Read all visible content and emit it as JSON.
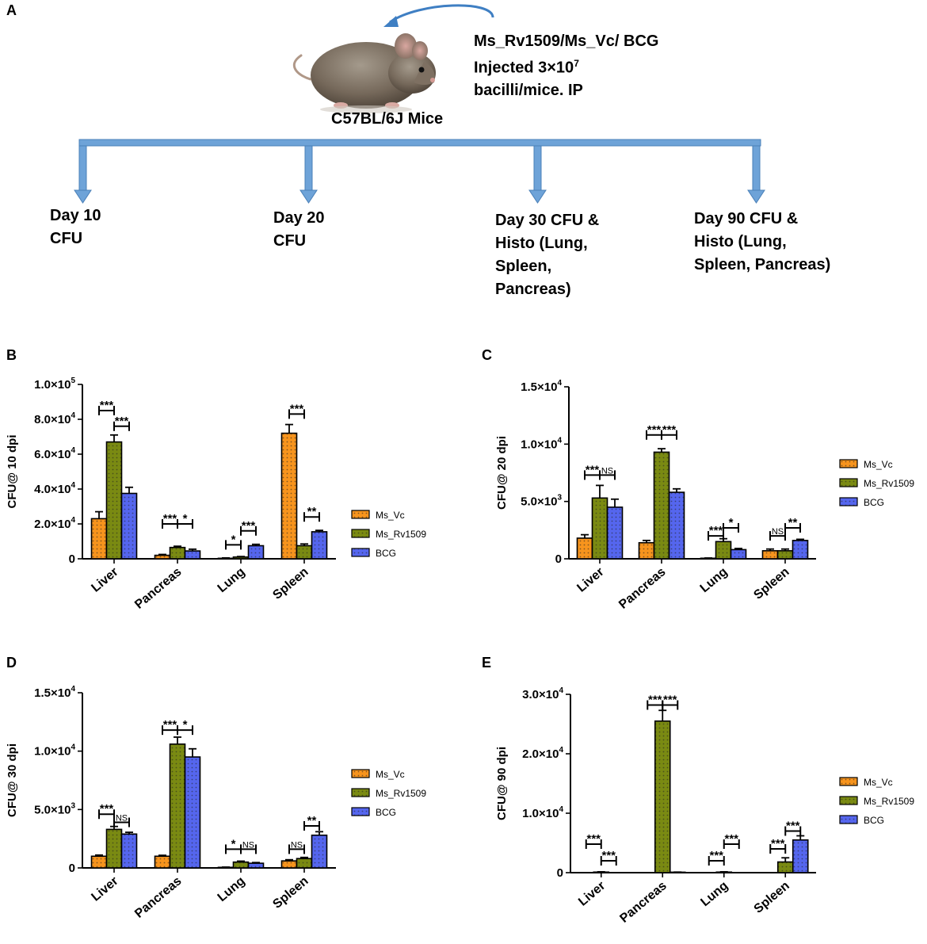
{
  "panels": {
    "a": "A",
    "b": "B",
    "c": "C",
    "d": "D",
    "e": "E"
  },
  "mouse": {
    "label": "C57BL/6J Mice"
  },
  "injection": {
    "line1": "Ms_Rv1509/Ms_Vc/ BCG",
    "line2_prefix": "Injected 3×10",
    "line2_sup": "7",
    "line3": "bacilli/mice. IP"
  },
  "timeline": {
    "day10": "Day 10\nCFU",
    "day20": "Day 20\nCFU",
    "day30": "Day 30 CFU &\nHisto (Lung,\nSpleen,\nPancreas)",
    "day90": "Day 90 CFU &\nHisto (Lung,\nSpleen, Pancreas)"
  },
  "colors": {
    "ms_vc": "#f7941d",
    "ms_rv1509": "#7a8a12",
    "bcg": "#5566ee",
    "arrow": "#6ea3d8",
    "arrow_edge": "#4a80b8"
  },
  "chart_data": [
    {
      "id": "B",
      "type": "bar",
      "ylabel": "CFU@ 10 dpi",
      "categories": [
        "Liver",
        "Pancreas",
        "Lung",
        "Spleen"
      ],
      "ylim": [
        0,
        100000
      ],
      "yticks": [
        {
          "v": 0,
          "m": "0",
          "e": ""
        },
        {
          "v": 20000,
          "m": "2.0×10",
          "e": "4"
        },
        {
          "v": 40000,
          "m": "4.0×10",
          "e": "4"
        },
        {
          "v": 60000,
          "m": "6.0×10",
          "e": "4"
        },
        {
          "v": 80000,
          "m": "8.0×10",
          "e": "4"
        },
        {
          "v": 100000,
          "m": "1.0×10",
          "e": "5"
        }
      ],
      "series": [
        {
          "name": "Ms_Vc",
          "values": [
            23000,
            2000,
            300,
            72000
          ],
          "errors": [
            4000,
            500,
            200,
            5000
          ]
        },
        {
          "name": "Ms_Rv1509",
          "values": [
            67000,
            6500,
            1000,
            7500
          ],
          "errors": [
            4000,
            700,
            300,
            1000
          ]
        },
        {
          "name": "BCG",
          "values": [
            37500,
            4500,
            7500,
            15500
          ],
          "errors": [
            3500,
            1000,
            800,
            800
          ]
        }
      ],
      "significance": [
        {
          "cat": 0,
          "from": 0,
          "to": 1,
          "label": "***",
          "y": 85000
        },
        {
          "cat": 0,
          "from": 1,
          "to": 2,
          "label": "***",
          "y": 76000
        },
        {
          "cat": 1,
          "from": 0,
          "to": 1,
          "label": "***",
          "y": 20000
        },
        {
          "cat": 1,
          "from": 1,
          "to": 2,
          "label": "*",
          "y": 20000
        },
        {
          "cat": 2,
          "from": 0,
          "to": 1,
          "label": "*",
          "y": 8000
        },
        {
          "cat": 2,
          "from": 1,
          "to": 2,
          "label": "***",
          "y": 16000
        },
        {
          "cat": 3,
          "from": 0,
          "to": 1,
          "label": "***",
          "y": 83000
        },
        {
          "cat": 3,
          "from": 1,
          "to": 2,
          "label": "**",
          "y": 24000
        }
      ]
    },
    {
      "id": "C",
      "type": "bar",
      "ylabel": "CFU@ 20 dpi",
      "categories": [
        "Liver",
        "Pancreas",
        "Lung",
        "Spleen"
      ],
      "ylim": [
        0,
        15000
      ],
      "yticks": [
        {
          "v": 0,
          "m": "0",
          "e": ""
        },
        {
          "v": 5000,
          "m": "5.0×10",
          "e": "3"
        },
        {
          "v": 10000,
          "m": "1.0×10",
          "e": "4"
        },
        {
          "v": 15000,
          "m": "1.5×10",
          "e": "4"
        }
      ],
      "series": [
        {
          "name": "Ms_Vc",
          "values": [
            1800,
            1400,
            50,
            700
          ],
          "errors": [
            300,
            200,
            20,
            150
          ]
        },
        {
          "name": "Ms_Rv1509",
          "values": [
            5300,
            9300,
            1500,
            700
          ],
          "errors": [
            1100,
            300,
            250,
            150
          ]
        },
        {
          "name": "BCG",
          "values": [
            4500,
            5800,
            800,
            1600
          ],
          "errors": [
            700,
            300,
            100,
            100
          ]
        }
      ],
      "significance": [
        {
          "cat": 0,
          "from": 0,
          "to": 1,
          "label": "***",
          "y": 7300
        },
        {
          "cat": 0,
          "from": 1,
          "to": 2,
          "label": "NS",
          "y": 7300
        },
        {
          "cat": 1,
          "from": 0,
          "to": 1,
          "label": "***",
          "y": 10800
        },
        {
          "cat": 1,
          "from": 1,
          "to": 2,
          "label": "***",
          "y": 10800
        },
        {
          "cat": 2,
          "from": 0,
          "to": 1,
          "label": "***",
          "y": 2000
        },
        {
          "cat": 2,
          "from": 1,
          "to": 2,
          "label": "*",
          "y": 2700
        },
        {
          "cat": 3,
          "from": 0,
          "to": 1,
          "label": "NS",
          "y": 2000
        },
        {
          "cat": 3,
          "from": 1,
          "to": 2,
          "label": "**",
          "y": 2700
        }
      ]
    },
    {
      "id": "D",
      "type": "bar",
      "ylabel": "CFU@ 30 dpi",
      "categories": [
        "Liver",
        "Pancreas",
        "Lung",
        "Spleen"
      ],
      "ylim": [
        0,
        15000
      ],
      "yticks": [
        {
          "v": 0,
          "m": "0",
          "e": ""
        },
        {
          "v": 5000,
          "m": "5.0×10",
          "e": "3"
        },
        {
          "v": 10000,
          "m": "1.0×10",
          "e": "4"
        },
        {
          "v": 15000,
          "m": "1.5×10",
          "e": "4"
        }
      ],
      "series": [
        {
          "name": "Ms_Vc",
          "values": [
            1000,
            1000,
            50,
            600
          ],
          "errors": [
            100,
            80,
            20,
            100
          ]
        },
        {
          "name": "Ms_Rv1509",
          "values": [
            3300,
            10600,
            500,
            800
          ],
          "errors": [
            250,
            600,
            80,
            100
          ]
        },
        {
          "name": "BCG",
          "values": [
            2900,
            9500,
            400,
            2800
          ],
          "errors": [
            150,
            700,
            60,
            300
          ]
        }
      ],
      "significance": [
        {
          "cat": 0,
          "from": 0,
          "to": 1,
          "label": "***",
          "y": 4600
        },
        {
          "cat": 0,
          "from": 1,
          "to": 2,
          "label": "NS",
          "y": 3900
        },
        {
          "cat": 1,
          "from": 0,
          "to": 1,
          "label": "***",
          "y": 11800
        },
        {
          "cat": 1,
          "from": 1,
          "to": 2,
          "label": "*",
          "y": 11800
        },
        {
          "cat": 2,
          "from": 0,
          "to": 1,
          "label": "*",
          "y": 1600
        },
        {
          "cat": 2,
          "from": 1,
          "to": 2,
          "label": "NS",
          "y": 1600
        },
        {
          "cat": 3,
          "from": 0,
          "to": 1,
          "label": "NS",
          "y": 1600
        },
        {
          "cat": 3,
          "from": 1,
          "to": 2,
          "label": "**",
          "y": 3600
        }
      ]
    },
    {
      "id": "E",
      "type": "bar",
      "ylabel": "CFU@ 90 dpi",
      "categories": [
        "Liver",
        "Pancreas",
        "Lung",
        "Spleen"
      ],
      "ylim": [
        0,
        30000
      ],
      "yticks": [
        {
          "v": 0,
          "m": "0",
          "e": ""
        },
        {
          "v": 10000,
          "m": "1.0×10",
          "e": "4"
        },
        {
          "v": 20000,
          "m": "2.0×10",
          "e": "4"
        },
        {
          "v": 30000,
          "m": "3.0×10",
          "e": "4"
        }
      ],
      "series": [
        {
          "name": "Ms_Vc",
          "values": [
            0,
            0,
            0,
            0
          ],
          "errors": [
            0,
            0,
            0,
            0
          ]
        },
        {
          "name": "Ms_Rv1509",
          "values": [
            100,
            25500,
            100,
            1800
          ],
          "errors": [
            50,
            1800,
            50,
            700
          ]
        },
        {
          "name": "BCG",
          "values": [
            0,
            80,
            0,
            5500
          ],
          "errors": [
            0,
            20,
            0,
            700
          ]
        }
      ],
      "significance": [
        {
          "cat": 0,
          "from": 0,
          "to": 1,
          "label": "***",
          "y": 4800
        },
        {
          "cat": 0,
          "from": 1,
          "to": 2,
          "label": "***",
          "y": 2000
        },
        {
          "cat": 1,
          "from": 0,
          "to": 1,
          "label": "***",
          "y": 28200
        },
        {
          "cat": 1,
          "from": 1,
          "to": 2,
          "label": "***",
          "y": 28200
        },
        {
          "cat": 2,
          "from": 0,
          "to": 1,
          "label": "***",
          "y": 2000
        },
        {
          "cat": 2,
          "from": 1,
          "to": 2,
          "label": "***",
          "y": 4800
        },
        {
          "cat": 3,
          "from": 0,
          "to": 1,
          "label": "***",
          "y": 4000
        },
        {
          "cat": 3,
          "from": 1,
          "to": 2,
          "label": "***",
          "y": 7000
        }
      ]
    }
  ]
}
